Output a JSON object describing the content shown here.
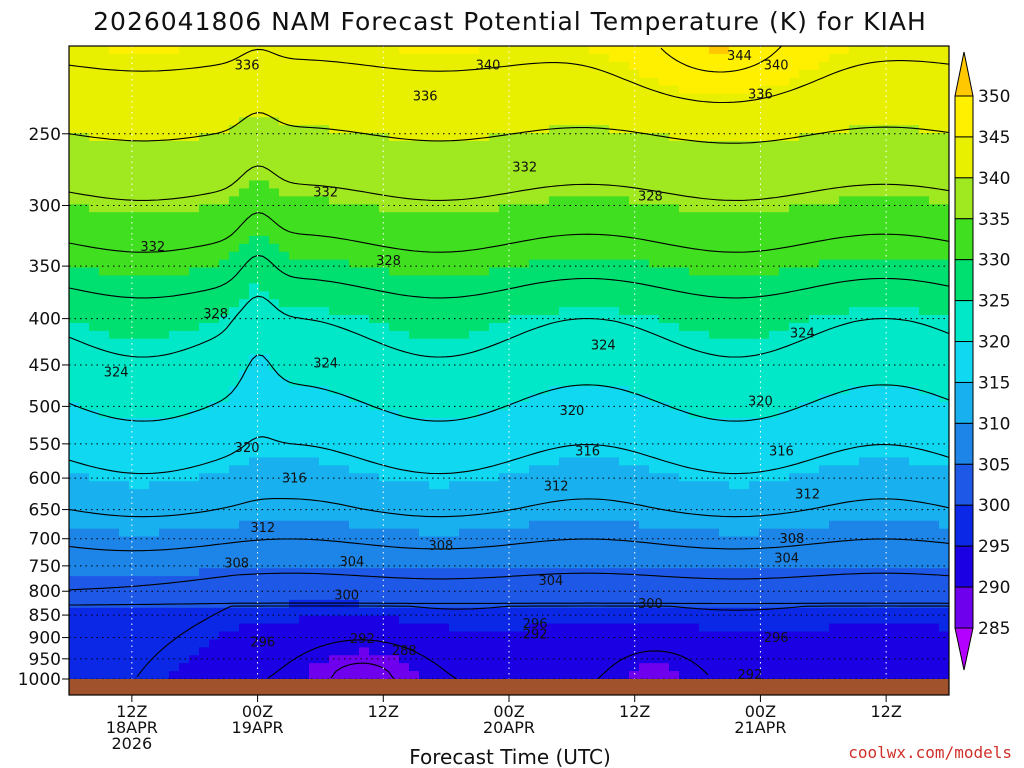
{
  "chart_data": {
    "type": "heatmap",
    "title": "2026041806 NAM Forecast Potential Temperature (K) for KIAH",
    "xlabel": "Forecast Time (UTC)",
    "ylabel": "",
    "y_scale": "log-pressure",
    "ylim": [
      1000,
      200
    ],
    "y_ticks": [
      250,
      300,
      350,
      400,
      450,
      500,
      550,
      600,
      650,
      700,
      750,
      800,
      850,
      900,
      950,
      1000
    ],
    "x_ticks": [
      {
        "hour": 6,
        "lines": [
          "12Z",
          "18APR",
          "2026"
        ]
      },
      {
        "hour": 18,
        "lines": [
          "00Z",
          "19APR"
        ]
      },
      {
        "hour": 30,
        "lines": [
          "12Z"
        ]
      },
      {
        "hour": 42,
        "lines": [
          "00Z",
          "20APR"
        ]
      },
      {
        "hour": 54,
        "lines": [
          "12Z"
        ]
      },
      {
        "hour": 66,
        "lines": [
          "00Z",
          "21APR"
        ]
      },
      {
        "hour": 78,
        "lines": [
          "12Z"
        ]
      }
    ],
    "xlim_hours": [
      0,
      84
    ],
    "grid": true,
    "colorbar": {
      "levels": [
        285,
        290,
        295,
        300,
        305,
        310,
        315,
        320,
        325,
        330,
        335,
        340,
        345,
        350
      ],
      "colors": [
        "#b400ff",
        "#6e00ee",
        "#1c00e4",
        "#0a28e6",
        "#1e58e6",
        "#1d84e8",
        "#18b0ee",
        "#10d8f0",
        "#00e8c8",
        "#00e070",
        "#40e020",
        "#a0e820",
        "#e8f000",
        "#fff000",
        "#ffc800"
      ],
      "extend": "both",
      "placement": "right"
    },
    "terrain_color": "#a0522d",
    "contour_interval": 4,
    "contour_labels": [
      {
        "value": "336",
        "hour": 17,
        "p": 210
      },
      {
        "value": "340",
        "hour": 40,
        "p": 210
      },
      {
        "value": "344",
        "hour": 64,
        "p": 205
      },
      {
        "value": "340",
        "hour": 67.5,
        "p": 210
      },
      {
        "value": "336",
        "hour": 34,
        "p": 227
      },
      {
        "value": "336",
        "hour": 66,
        "p": 226
      },
      {
        "value": "332",
        "hour": 43.5,
        "p": 272
      },
      {
        "value": "332",
        "hour": 24.5,
        "p": 290
      },
      {
        "value": "328",
        "hour": 55.5,
        "p": 293
      },
      {
        "value": "332",
        "hour": 8,
        "p": 333
      },
      {
        "value": "328",
        "hour": 30.5,
        "p": 345
      },
      {
        "value": "328",
        "hour": 14,
        "p": 395
      },
      {
        "value": "324",
        "hour": 51,
        "p": 428
      },
      {
        "value": "324",
        "hour": 70,
        "p": 415
      },
      {
        "value": "324",
        "hour": 4.5,
        "p": 458
      },
      {
        "value": "324",
        "hour": 24.5,
        "p": 448
      },
      {
        "value": "320",
        "hour": 48,
        "p": 505
      },
      {
        "value": "320",
        "hour": 66,
        "p": 493
      },
      {
        "value": "320",
        "hour": 17,
        "p": 555
      },
      {
        "value": "316",
        "hour": 49.5,
        "p": 560
      },
      {
        "value": "316",
        "hour": 68,
        "p": 560
      },
      {
        "value": "316",
        "hour": 21.5,
        "p": 600
      },
      {
        "value": "312",
        "hour": 46.5,
        "p": 612
      },
      {
        "value": "312",
        "hour": 70.5,
        "p": 625
      },
      {
        "value": "312",
        "hour": 18.5,
        "p": 680
      },
      {
        "value": "308",
        "hour": 35.5,
        "p": 712
      },
      {
        "value": "308",
        "hour": 69,
        "p": 700
      },
      {
        "value": "308",
        "hour": 16,
        "p": 745
      },
      {
        "value": "304",
        "hour": 27,
        "p": 742
      },
      {
        "value": "304",
        "hour": 68.5,
        "p": 735
      },
      {
        "value": "304",
        "hour": 46,
        "p": 778
      },
      {
        "value": "300",
        "hour": 26.5,
        "p": 808
      },
      {
        "value": "300",
        "hour": 55.5,
        "p": 825
      },
      {
        "value": "296",
        "hour": 44.5,
        "p": 868
      },
      {
        "value": "296",
        "hour": 18.5,
        "p": 910
      },
      {
        "value": "296",
        "hour": 67.5,
        "p": 900
      },
      {
        "value": "292",
        "hour": 44.5,
        "p": 892
      },
      {
        "value": "292",
        "hour": 28,
        "p": 902
      },
      {
        "value": "292",
        "hour": 65,
        "p": 988
      },
      {
        "value": "288",
        "hour": 32,
        "p": 930
      }
    ]
  },
  "credit": "coolwx.com/models",
  "colors": {
    "frame": "#000000",
    "background": "#ffffff",
    "contour": "#000000",
    "credit": "#d0302a"
  }
}
